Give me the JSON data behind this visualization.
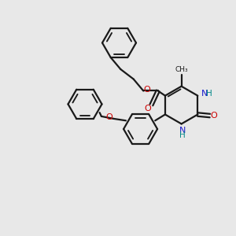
{
  "background_color": "#e8e8e8",
  "bond_color": "#1a1a1a",
  "oxygen_color": "#cc0000",
  "nitrogen_color": "#1a1acc",
  "hydrogen_color": "#008888",
  "line_width": 1.6,
  "figsize": [
    3.0,
    3.0
  ],
  "dpi": 100,
  "xlim": [
    0,
    10
  ],
  "ylim": [
    0,
    10
  ]
}
